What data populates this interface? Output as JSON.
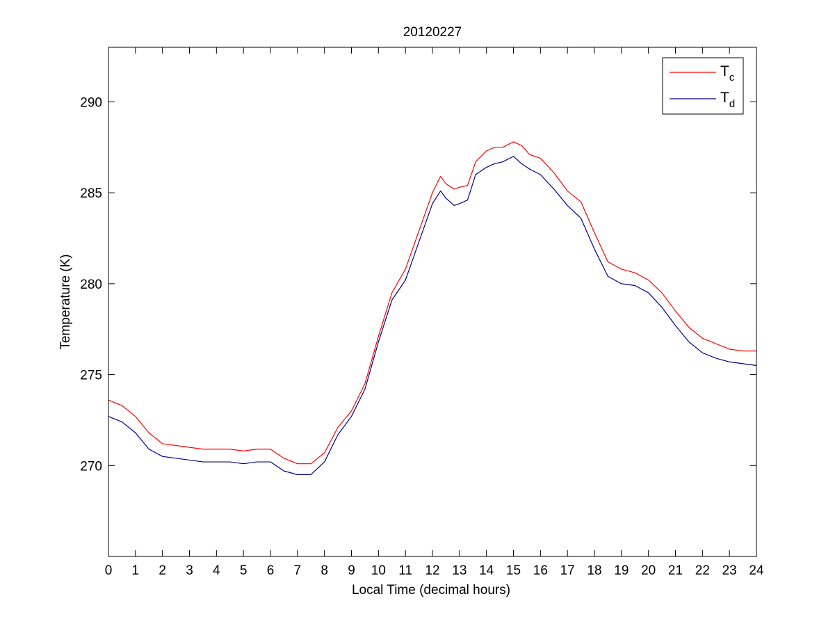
{
  "chart_data": {
    "type": "line",
    "title": "20120227",
    "xlabel": "Local Time (decimal hours)",
    "ylabel": "Temperature (K)",
    "xlim": [
      0,
      24
    ],
    "ylim": [
      265,
      293
    ],
    "xticks": [
      0,
      1,
      2,
      3,
      4,
      5,
      6,
      7,
      8,
      9,
      10,
      11,
      12,
      13,
      14,
      15,
      16,
      17,
      18,
      19,
      20,
      21,
      22,
      23,
      24
    ],
    "yticks": [
      270,
      275,
      280,
      285,
      290
    ],
    "grid": false,
    "legend_position": "top-right",
    "series": [
      {
        "name": "T",
        "name_subscript": "c",
        "color": "#ff0000",
        "x": [
          0,
          0.5,
          1,
          1.5,
          2,
          2.5,
          3,
          3.5,
          4,
          4.5,
          5,
          5.5,
          6,
          6.5,
          7,
          7.5,
          8,
          8.5,
          9,
          9.5,
          10,
          10.5,
          11,
          11.5,
          12,
          12.3,
          12.5,
          12.8,
          13,
          13.3,
          13.6,
          14,
          14.3,
          14.6,
          15,
          15.3,
          15.6,
          16,
          16.5,
          17,
          17.5,
          18,
          18.5,
          19,
          19.5,
          20,
          20.5,
          21,
          21.5,
          22,
          22.5,
          23,
          23.5,
          24
        ],
        "values": [
          273.6,
          273.3,
          272.7,
          271.8,
          271.2,
          271.1,
          271.0,
          270.9,
          270.9,
          270.9,
          270.8,
          270.9,
          270.9,
          270.4,
          270.1,
          270.1,
          270.7,
          272.1,
          273.0,
          274.5,
          277.1,
          279.5,
          280.8,
          282.9,
          285.0,
          285.9,
          285.5,
          285.2,
          285.3,
          285.4,
          286.7,
          287.3,
          287.5,
          287.5,
          287.8,
          287.6,
          287.1,
          286.9,
          286.1,
          285.1,
          284.5,
          282.8,
          281.2,
          280.8,
          280.6,
          280.2,
          279.5,
          278.5,
          277.6,
          277.0,
          276.7,
          276.4,
          276.3,
          276.3
        ]
      },
      {
        "name": "T",
        "name_subscript": "d",
        "color": "#00008b",
        "x": [
          0,
          0.5,
          1,
          1.5,
          2,
          2.5,
          3,
          3.5,
          4,
          4.5,
          5,
          5.5,
          6,
          6.5,
          7,
          7.5,
          8,
          8.5,
          9,
          9.5,
          10,
          10.5,
          11,
          11.5,
          12,
          12.3,
          12.5,
          12.8,
          13,
          13.3,
          13.6,
          14,
          14.3,
          14.6,
          15,
          15.3,
          15.6,
          16,
          16.5,
          17,
          17.5,
          18,
          18.5,
          19,
          19.5,
          20,
          20.5,
          21,
          21.5,
          22,
          22.5,
          23,
          23.5,
          24
        ],
        "values": [
          272.7,
          272.4,
          271.8,
          270.9,
          270.5,
          270.4,
          270.3,
          270.2,
          270.2,
          270.2,
          270.1,
          270.2,
          270.2,
          269.7,
          269.5,
          269.5,
          270.2,
          271.7,
          272.7,
          274.2,
          276.8,
          279.1,
          280.2,
          282.3,
          284.4,
          285.1,
          284.7,
          284.3,
          284.4,
          284.6,
          286.0,
          286.4,
          286.6,
          286.7,
          287.0,
          286.6,
          286.3,
          286.0,
          285.2,
          284.3,
          283.6,
          281.9,
          280.4,
          280.0,
          279.9,
          279.5,
          278.7,
          277.7,
          276.8,
          276.2,
          275.9,
          275.7,
          275.6,
          275.5
        ]
      }
    ]
  }
}
